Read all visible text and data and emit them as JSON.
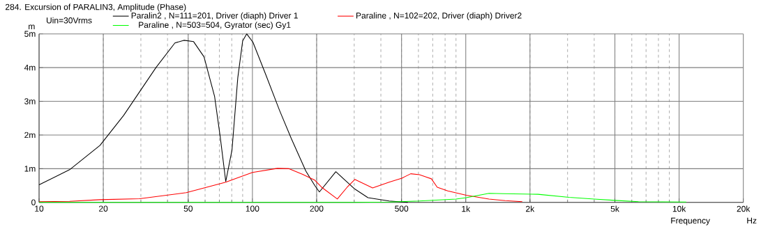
{
  "chart_data": {
    "type": "line",
    "title": "284. Excursion of PARALIN3, Amplitude (Phase)",
    "xlabel": "Frequency",
    "ylabel": "m",
    "annotations": [
      "Uin=30Vrms",
      "Hz"
    ],
    "log": "x",
    "grid": true,
    "legend": "top",
    "marker": "none",
    "line_style": "solid",
    "xlim": [
      10,
      20000
    ],
    "ylim": [
      0,
      5
    ],
    "xticks": [
      10,
      20,
      50,
      100,
      200,
      500,
      {
        "value": 1000,
        "label": "1k"
      },
      {
        "value": 2000,
        "label": "2k"
      },
      {
        "value": 5000,
        "label": "5k"
      },
      {
        "value": 10000,
        "label": "10k"
      },
      {
        "value": 20000,
        "label": "20k"
      }
    ],
    "yticks": [
      0,
      {
        "value": 1,
        "label": "1m"
      },
      {
        "value": 2,
        "label": "2m"
      },
      {
        "value": 3,
        "label": "3m"
      },
      {
        "value": 4,
        "label": "4m"
      },
      {
        "value": 5,
        "label": "5m"
      }
    ],
    "series": [
      {
        "name": "Paralin2 , N=111=201, Driver (diaph) Driver 1",
        "color": "#000000",
        "x": [
          10,
          13.9,
          19.3,
          24.9,
          35.3,
          43.3,
          47.7,
          53,
          59.3,
          66.5,
          70.6,
          75,
          80.2,
          85.4,
          90,
          94,
          100.6,
          115,
          134,
          152,
          178,
          196,
          206,
          246,
          300,
          348,
          437,
          535
        ],
        "values": [
          0.52,
          0.97,
          1.69,
          2.58,
          4.0,
          4.73,
          4.81,
          4.77,
          4.32,
          3.14,
          1.96,
          0.62,
          1.55,
          3.7,
          4.79,
          5.0,
          4.75,
          3.82,
          2.73,
          1.9,
          0.93,
          0.5,
          0.31,
          0.91,
          0.41,
          0.14,
          0.04,
          0
        ]
      },
      {
        "name": "Paraline , N=102=202, Driver (diaph) Driver2",
        "color": "#ff0000",
        "x": [
          10,
          13.9,
          19.3,
          29.6,
          49,
          75,
          100,
          131,
          148,
          172,
          196,
          211,
          250,
          278,
          302,
          366,
          437,
          502,
          552,
          607,
          690,
          735,
          823,
          1005,
          1285,
          1530,
          1840
        ],
        "values": [
          0.02,
          0.03,
          0.08,
          0.11,
          0.29,
          0.6,
          0.89,
          1.01,
          1.0,
          0.83,
          0.66,
          0.45,
          0.1,
          0.45,
          0.68,
          0.43,
          0.6,
          0.72,
          0.85,
          0.82,
          0.7,
          0.45,
          0.34,
          0.21,
          0.1,
          0.05,
          0.02
        ]
      },
      {
        "name": "Paraline , N=503=504, Gyrator (sec) Gy1",
        "color": "#00ff00",
        "x": [
          10,
          300,
          437,
          607,
          900,
          1005,
          1285,
          1500,
          2180,
          3050,
          4000,
          5000,
          6450,
          10800
        ],
        "values": [
          0,
          0,
          0.01,
          0.04,
          0.1,
          0.14,
          0.27,
          0.26,
          0.24,
          0.15,
          0.1,
          0.06,
          0.02,
          0.01
        ]
      }
    ]
  }
}
